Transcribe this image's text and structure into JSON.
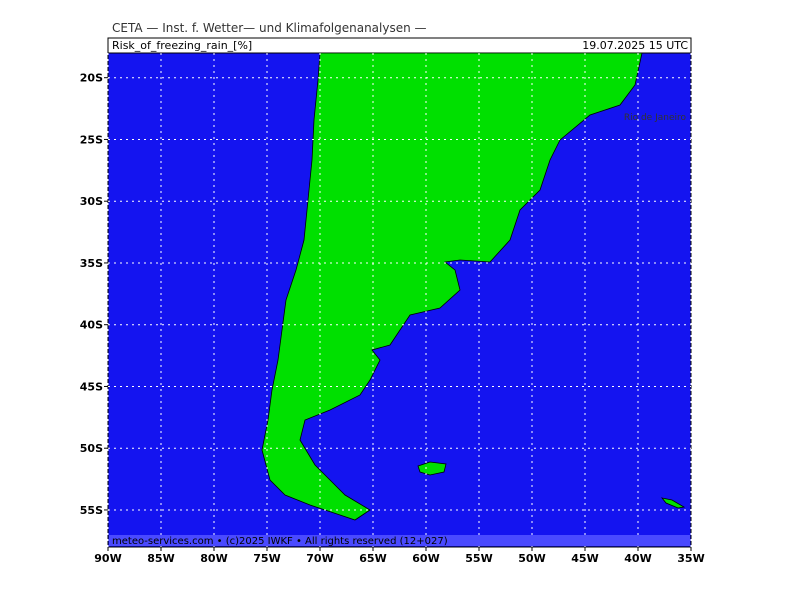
{
  "header": {
    "title": "CETA — Inst. f. Wetter— und Klimafolgenanalysen —",
    "field": "Risk_of_freezing_rain_[%]",
    "valid_time": "19.07.2025 15 UTC"
  },
  "map": {
    "lonlim": [
      -90,
      -35
    ],
    "latlim": [
      -58,
      -18
    ],
    "lon_ticks": [
      {
        "value": -90,
        "label": "90W"
      },
      {
        "value": -85,
        "label": "85W"
      },
      {
        "value": -80,
        "label": "80W"
      },
      {
        "value": -75,
        "label": "75W"
      },
      {
        "value": -70,
        "label": "70W"
      },
      {
        "value": -65,
        "label": "65W"
      },
      {
        "value": -60,
        "label": "60W"
      },
      {
        "value": -55,
        "label": "55W"
      },
      {
        "value": -50,
        "label": "50W"
      },
      {
        "value": -45,
        "label": "45W"
      },
      {
        "value": -40,
        "label": "40W"
      },
      {
        "value": -35,
        "label": "35W"
      }
    ],
    "lat_ticks": [
      {
        "value": -20,
        "label": "20S"
      },
      {
        "value": -25,
        "label": "25S"
      },
      {
        "value": -30,
        "label": "30S"
      },
      {
        "value": -35,
        "label": "35S"
      },
      {
        "value": -40,
        "label": "40S"
      },
      {
        "value": -45,
        "label": "45S"
      },
      {
        "value": -50,
        "label": "50S"
      },
      {
        "value": -55,
        "label": "55S"
      }
    ],
    "place_label": "Rio de Janeiro"
  },
  "footer": "meteo-services.com • (c)2025 IWKF • All rights reserved (12+027)"
}
